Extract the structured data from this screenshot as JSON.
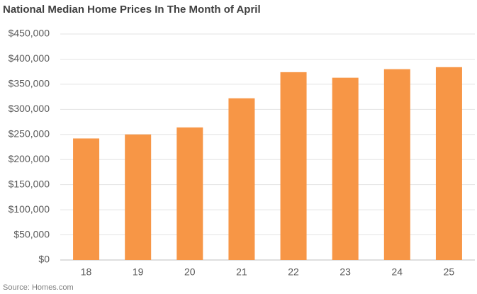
{
  "chart_data": {
    "type": "bar",
    "title": "National Median Home Prices In The Month of April",
    "source": "Source: Homes.com",
    "categories": [
      "18",
      "19",
      "20",
      "21",
      "22",
      "23",
      "24",
      "25"
    ],
    "values": [
      242000,
      250000,
      264000,
      322000,
      374000,
      363000,
      380000,
      384000
    ],
    "color": "#f79646",
    "ylim": [
      0,
      450000
    ],
    "yticks": [
      {
        "value": 0,
        "label": "$0"
      },
      {
        "value": 50000,
        "label": "$50,000"
      },
      {
        "value": 100000,
        "label": "$100,000"
      },
      {
        "value": 150000,
        "label": "$150,000"
      },
      {
        "value": 200000,
        "label": "$200,000"
      },
      {
        "value": 250000,
        "label": "$250,000"
      },
      {
        "value": 300000,
        "label": "$300,000"
      },
      {
        "value": 350000,
        "label": "$350,000"
      },
      {
        "value": 400000,
        "label": "$400,000"
      },
      {
        "value": 450000,
        "label": "$450,000"
      }
    ],
    "grid": true
  }
}
